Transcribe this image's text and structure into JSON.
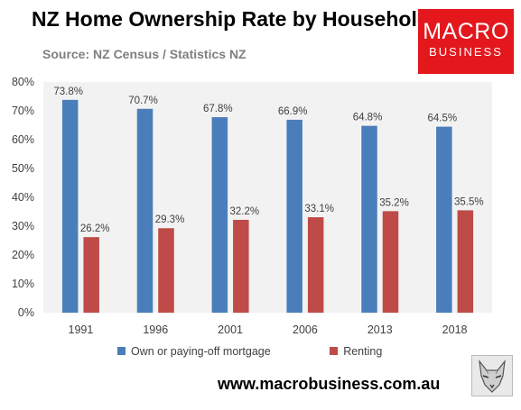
{
  "header": {
    "title": "NZ Home Ownership Rate by Households",
    "subtitle": "Source: NZ Census / Statistics NZ"
  },
  "logo": {
    "line1": "MACRO",
    "line2": "BUSINESS"
  },
  "footer": {
    "website": "www.macrobusiness.com.au"
  },
  "colors": {
    "owned": "#4a7ebb",
    "renting": "#be4b48",
    "plot_bg": "#f2f2f2",
    "logo_bg": "#e3171c"
  },
  "icons": {
    "fox": "fox-sketch-icon"
  },
  "chart_data": {
    "type": "bar",
    "title": "NZ Home Ownership Rate by Households",
    "subtitle": "Source: NZ Census / Statistics NZ",
    "xlabel": "",
    "ylabel": "",
    "categories": [
      "1991",
      "1996",
      "2001",
      "2006",
      "2013",
      "2018"
    ],
    "series": [
      {
        "name": "Own or paying-off mortgage",
        "values": [
          73.8,
          70.7,
          67.8,
          66.9,
          64.8,
          64.5
        ],
        "labels": [
          "73.8%",
          "70.7%",
          "67.8%",
          "66.9%",
          "64.8%",
          "64.5%"
        ]
      },
      {
        "name": "Renting",
        "values": [
          26.2,
          29.3,
          32.2,
          33.1,
          35.2,
          35.5
        ],
        "labels": [
          "26.2%",
          "29.3%",
          "32.2%",
          "33.1%",
          "35.2%",
          "35.5%"
        ]
      }
    ],
    "ylim": [
      0,
      80
    ],
    "yticks": [
      0,
      10,
      20,
      30,
      40,
      50,
      60,
      70,
      80
    ],
    "ytick_labels": [
      "0%",
      "10%",
      "20%",
      "30%",
      "40%",
      "50%",
      "60%",
      "70%",
      "80%"
    ],
    "grid": false,
    "legend": "bottom"
  }
}
